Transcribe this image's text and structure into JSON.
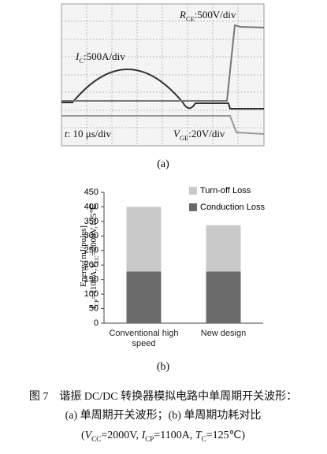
{
  "figure_a": {
    "annotations": [
      [
        {
          "text": "R",
          "italic": true
        },
        {
          "text": "CE",
          "sub": true
        },
        {
          "text": ":500V/div"
        }
      ],
      [
        {
          "text": "I",
          "italic": true
        },
        {
          "text": "C",
          "sub": true
        },
        {
          "text": ":500A/div"
        }
      ],
      [
        {
          "text": "t",
          "italic": true
        },
        {
          "text": ": 10 μs/div"
        }
      ],
      [
        {
          "text": "V",
          "italic": true
        },
        {
          "text": "GE",
          "sub": true
        },
        {
          "text": ":20V/div"
        }
      ]
    ],
    "label": "(a)"
  },
  "chart_data": {
    "type": "bar",
    "stacked": true,
    "categories": [
      "Conventional high speed",
      "New design"
    ],
    "series": [
      {
        "name": "Conduction Loss",
        "color": "#6b6b6b",
        "values": [
          178,
          178
        ]
      },
      {
        "name": "Turn-off Loss",
        "color": "#c9c9c9",
        "values": [
          222,
          159
        ]
      }
    ],
    "ylim": [
      0,
      450
    ],
    "yticks": [
      0,
      50,
      100,
      150,
      200,
      250,
      300,
      350,
      400,
      450
    ],
    "y_label_lines": [
      [
        {
          "text": "Energy[mJ/pules]"
        }
      ],
      [
        {
          "text": "I",
          "italic": true
        },
        {
          "text": "CP",
          "sub": true
        },
        {
          "text": "=1100A,"
        },
        {
          "text": "V",
          "italic": true
        },
        {
          "text": "CC",
          "sub": true
        },
        {
          "text": "=2000V,125℃"
        }
      ]
    ],
    "legend": "upper right",
    "label": "(b)"
  },
  "caption": {
    "lines": [
      [
        {
          "text": "图 7　谐振 DC/DC 转换器模拟电路中单周期开关波形："
        }
      ],
      [
        {
          "text": "(a) 单周期开关波形；(b) 单周期功耗对比"
        }
      ],
      [
        {
          "text": "("
        },
        {
          "text": "V",
          "italic": true
        },
        {
          "text": "CC",
          "sub": true
        },
        {
          "text": "=2000V, "
        },
        {
          "text": "I",
          "italic": true
        },
        {
          "text": "CP",
          "sub": true
        },
        {
          "text": "=1100A, "
        },
        {
          "text": "T",
          "italic": true
        },
        {
          "text": "C",
          "sub": true
        },
        {
          "text": "=125℃)"
        }
      ]
    ]
  }
}
